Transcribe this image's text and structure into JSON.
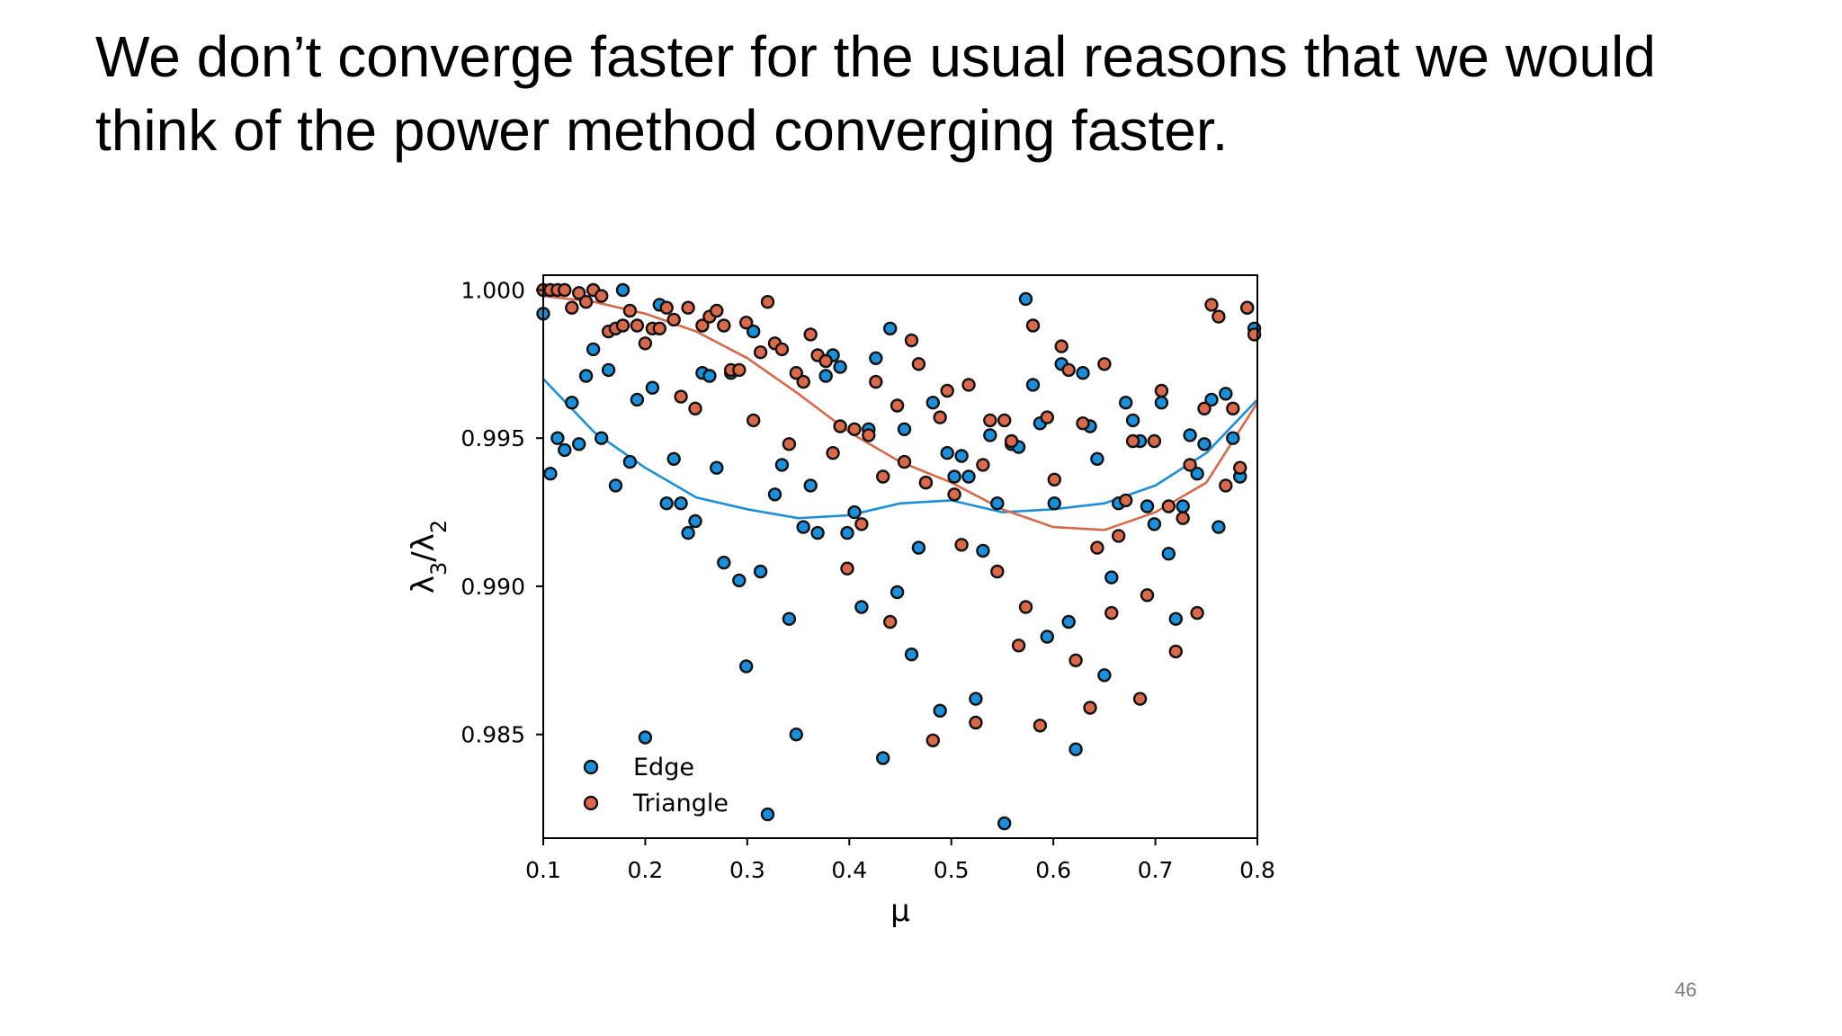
{
  "slide": {
    "title_line1": "We don’t converge faster for the usual reasons that we would",
    "title_line2": "think of the power method converging faster.",
    "page_number": "46"
  },
  "colors": {
    "edge": "#1a8fdb",
    "triangle": "#d9694a",
    "outline": "#111111"
  },
  "chart_data": {
    "type": "scatter",
    "xlabel": "μ",
    "ylabel_html": "λ3/λ2",
    "xlim": [
      0.1,
      0.8
    ],
    "ylim": [
      0.9815,
      1.0005
    ],
    "xticks": [
      0.1,
      0.2,
      0.3,
      0.4,
      0.5,
      0.6,
      0.7,
      0.8
    ],
    "xtick_labels": [
      "0.1",
      "0.2",
      "0.3",
      "0.4",
      "0.5",
      "0.6",
      "0.7",
      "0.8"
    ],
    "yticks": [
      0.985,
      0.99,
      0.995,
      1.0
    ],
    "ytick_labels": [
      "0.985",
      "0.990",
      "0.995",
      "1.000"
    ],
    "grid": false,
    "legend_position": "bottom-left",
    "series": [
      {
        "name": "Edge",
        "color": "#1a8fdb",
        "x": [
          0.1,
          0.107,
          0.114,
          0.121,
          0.128,
          0.135,
          0.142,
          0.149,
          0.157,
          0.164,
          0.171,
          0.178,
          0.185,
          0.192,
          0.2,
          0.207,
          0.214,
          0.221,
          0.228,
          0.235,
          0.242,
          0.249,
          0.256,
          0.263,
          0.27,
          0.277,
          0.284,
          0.292,
          0.299,
          0.306,
          0.313,
          0.32,
          0.327,
          0.334,
          0.341,
          0.348,
          0.355,
          0.362,
          0.369,
          0.377,
          0.384,
          0.391,
          0.398,
          0.405,
          0.412,
          0.419,
          0.426,
          0.433,
          0.44,
          0.447,
          0.454,
          0.461,
          0.468,
          0.475,
          0.482,
          0.489,
          0.496,
          0.503,
          0.51,
          0.517,
          0.524,
          0.531,
          0.538,
          0.545,
          0.552,
          0.559,
          0.566,
          0.573,
          0.58,
          0.587,
          0.594,
          0.601,
          0.608,
          0.615,
          0.622,
          0.629,
          0.636,
          0.643,
          0.65,
          0.657,
          0.664,
          0.671,
          0.678,
          0.685,
          0.692,
          0.699,
          0.706,
          0.713,
          0.72,
          0.727,
          0.734,
          0.741,
          0.748,
          0.755,
          0.762,
          0.769,
          0.776,
          0.783,
          0.79,
          0.797
        ],
        "y": [
          0.9992,
          0.9938,
          0.995,
          0.9946,
          0.9962,
          0.9948,
          0.9971,
          0.998,
          0.995,
          0.9973,
          0.9934,
          1.0,
          0.9942,
          0.9963,
          0.9849,
          0.9967,
          0.9995,
          0.9928,
          0.9943,
          0.9928,
          0.9918,
          0.9922,
          0.9972,
          0.9971,
          0.994,
          0.9908,
          0.9972,
          0.9902,
          0.9873,
          0.9986,
          0.9905,
          0.9823,
          0.9931,
          0.9941,
          0.9889,
          0.985,
          0.992,
          0.9934,
          0.9918,
          0.9971,
          0.9978,
          0.9974,
          0.9918,
          0.9925,
          0.9893,
          0.9953,
          0.9977,
          0.9842,
          0.9987,
          0.9898,
          0.9953,
          0.9877,
          0.9913,
          0.9935,
          0.9962,
          0.9858,
          0.9945,
          0.9937,
          0.9944,
          0.9937,
          0.9862,
          0.9912,
          0.9951,
          0.9928,
          0.982,
          0.9948,
          0.9947,
          0.9997,
          0.9968,
          0.9955,
          0.9883,
          0.9928,
          0.9975,
          0.9888,
          0.9845,
          0.9972,
          0.9954,
          0.9943,
          0.987,
          0.9903,
          0.9928,
          0.9962,
          0.9956,
          0.9949,
          0.9927,
          0.9921,
          0.9962,
          0.9911,
          0.9889,
          0.9927,
          0.9951,
          0.9938,
          0.9948,
          0.9963,
          0.992,
          0.9965,
          0.995,
          0.9937,
          0.9994,
          0.9987
        ]
      },
      {
        "name": "Triangle",
        "color": "#d9694a",
        "x": [
          0.1,
          0.107,
          0.114,
          0.121,
          0.128,
          0.135,
          0.142,
          0.149,
          0.157,
          0.164,
          0.171,
          0.178,
          0.185,
          0.192,
          0.2,
          0.207,
          0.214,
          0.221,
          0.228,
          0.235,
          0.242,
          0.249,
          0.256,
          0.263,
          0.27,
          0.277,
          0.284,
          0.292,
          0.299,
          0.306,
          0.313,
          0.32,
          0.327,
          0.334,
          0.341,
          0.348,
          0.355,
          0.362,
          0.369,
          0.377,
          0.384,
          0.391,
          0.398,
          0.405,
          0.412,
          0.419,
          0.426,
          0.433,
          0.44,
          0.447,
          0.454,
          0.461,
          0.468,
          0.475,
          0.482,
          0.489,
          0.496,
          0.503,
          0.51,
          0.517,
          0.524,
          0.531,
          0.538,
          0.545,
          0.552,
          0.559,
          0.566,
          0.573,
          0.58,
          0.587,
          0.594,
          0.601,
          0.608,
          0.615,
          0.622,
          0.629,
          0.636,
          0.643,
          0.65,
          0.657,
          0.664,
          0.671,
          0.678,
          0.685,
          0.692,
          0.699,
          0.706,
          0.713,
          0.72,
          0.727,
          0.734,
          0.741,
          0.748,
          0.755,
          0.762,
          0.769,
          0.776,
          0.783,
          0.79,
          0.797
        ],
        "y": [
          1.0,
          1.0,
          1.0,
          1.0,
          0.9994,
          0.9999,
          0.9996,
          1.0,
          0.9998,
          0.9986,
          0.9987,
          0.9988,
          0.9993,
          0.9988,
          0.9982,
          0.9987,
          0.9987,
          0.9994,
          0.999,
          0.9964,
          0.9994,
          0.996,
          0.9988,
          0.9991,
          0.9993,
          0.9988,
          0.9973,
          0.9973,
          0.9989,
          0.9956,
          0.9979,
          0.9996,
          0.9982,
          0.998,
          0.9948,
          0.9972,
          0.9969,
          0.9985,
          0.9978,
          0.9976,
          0.9945,
          0.9954,
          0.9906,
          0.9953,
          0.9921,
          0.9951,
          0.9969,
          0.9937,
          0.9888,
          0.9961,
          0.9942,
          0.9983,
          0.9975,
          0.9935,
          0.9848,
          0.9957,
          0.9966,
          0.9931,
          0.9914,
          0.9968,
          0.9854,
          0.9941,
          0.9956,
          0.9905,
          0.9956,
          0.9949,
          0.988,
          0.9893,
          0.9988,
          0.9853,
          0.9957,
          0.9936,
          0.9981,
          0.9973,
          0.9875,
          0.9955,
          0.9859,
          0.9913,
          0.9975,
          0.9891,
          0.9917,
          0.9929,
          0.9949,
          0.9862,
          0.9897,
          0.9949,
          0.9966,
          0.9927,
          0.9878,
          0.9923,
          0.9941,
          0.9891,
          0.996,
          0.9995,
          0.9991,
          0.9934,
          0.996,
          0.994,
          0.9994,
          0.9985
        ]
      }
    ],
    "trend_lines": [
      {
        "series": "Edge",
        "color": "#1a8fdb",
        "x": [
          0.1,
          0.15,
          0.2,
          0.25,
          0.3,
          0.35,
          0.4,
          0.45,
          0.5,
          0.55,
          0.6,
          0.65,
          0.7,
          0.75,
          0.8
        ],
        "y": [
          0.997,
          0.9952,
          0.994,
          0.993,
          0.9926,
          0.9923,
          0.9924,
          0.9928,
          0.9929,
          0.9925,
          0.9926,
          0.9928,
          0.9934,
          0.9945,
          0.9963
        ]
      },
      {
        "series": "Triangle",
        "color": "#d9694a",
        "x": [
          0.1,
          0.15,
          0.2,
          0.25,
          0.3,
          0.35,
          0.4,
          0.45,
          0.5,
          0.55,
          0.6,
          0.65,
          0.7,
          0.75,
          0.8
        ],
        "y": [
          0.9998,
          0.9996,
          0.9992,
          0.9986,
          0.9977,
          0.9965,
          0.9952,
          0.9942,
          0.9935,
          0.9926,
          0.992,
          0.9919,
          0.9925,
          0.9935,
          0.9962
        ]
      }
    ]
  }
}
